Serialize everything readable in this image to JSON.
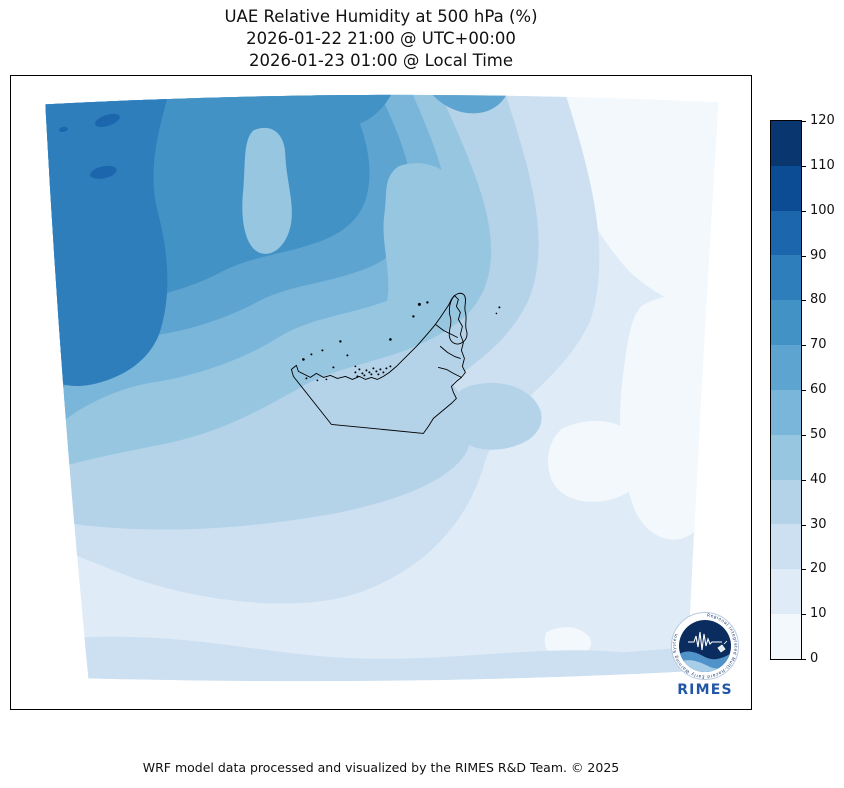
{
  "title": {
    "line1": "UAE Relative Humidity at 500 hPa (%)",
    "line2": "2026-01-22 21:00 @ UTC+00:00",
    "line3": "2026-01-23 01:00 @ Local Time"
  },
  "footer": {
    "credit": "WRF model data processed and visualized by the RIMES R&D Team. © 2025"
  },
  "logo": {
    "wordmark": "RIMES",
    "ring_text": "Regional Integrated Multi-Hazard Early Warning System"
  },
  "chart_data": {
    "type": "heatmap",
    "subtype": "filled-contour-weather-map",
    "title": "UAE Relative Humidity at 500 hPa (%)",
    "valid_time_utc": "2026-01-22 21:00 @ UTC+00:00",
    "valid_time_local": "2026-01-23 01:00 @ Local Time",
    "variable": "Relative Humidity",
    "pressure_level_hPa": 500,
    "units": "%",
    "colorbar": {
      "orientation": "vertical",
      "position": "right",
      "min": 0,
      "max": 120,
      "step": 10,
      "ticks": [
        0,
        10,
        20,
        30,
        40,
        50,
        60,
        70,
        80,
        90,
        100,
        110,
        120
      ]
    },
    "levels": [
      "0-10",
      "10-20",
      "20-30",
      "30-40",
      "40-50",
      "50-60",
      "60-70",
      "70-80",
      "80-90",
      "90-100",
      "100-110",
      "110-120"
    ],
    "palette": {
      "0-10": "#f3f8fd",
      "10-20": "#dfebf7",
      "20-30": "#cce0f1",
      "30-40": "#b4d3e9",
      "40-50": "#97c6e0",
      "50-60": "#7ab6da",
      "60-70": "#5da4d0",
      "70-80": "#4392c6",
      "80-90": "#2f7ebc",
      "90-100": "#1c66ae",
      "100-110": "#0c4c94",
      "110-120": "#09366f"
    },
    "field_description": {
      "max_region": "northwest corner of domain, 80-100 %",
      "min_region": "east and southeast of domain, 0-20 %",
      "overlay": "UAE country border, internal boundaries and coastal islands drawn in black"
    }
  }
}
